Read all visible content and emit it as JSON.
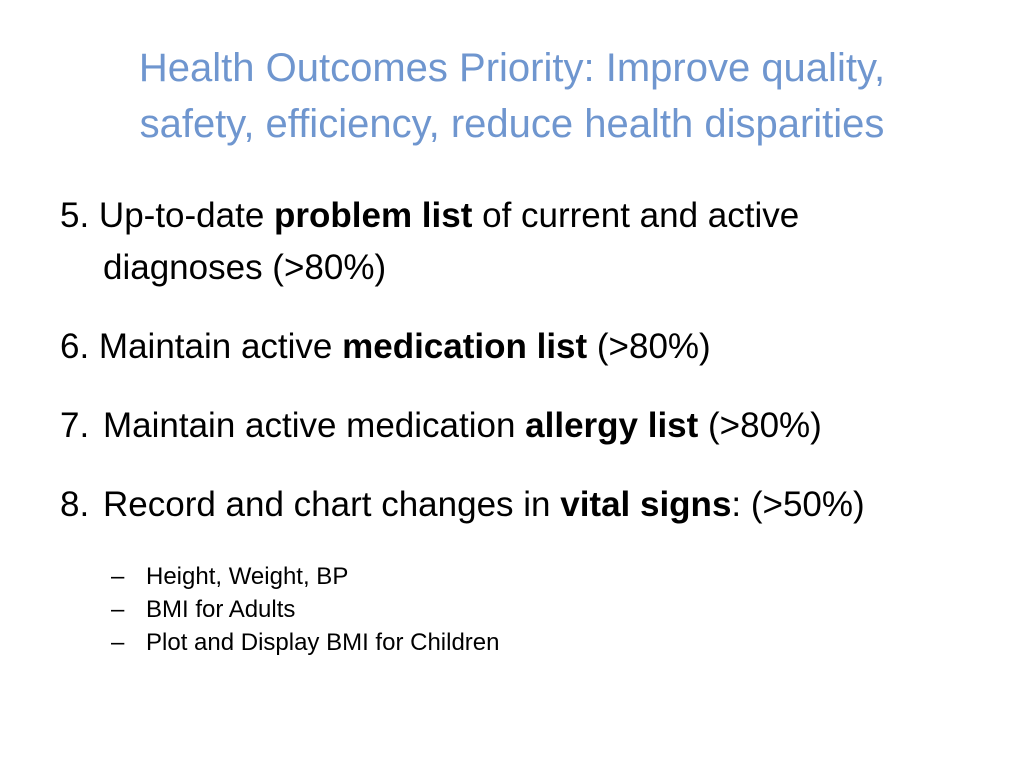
{
  "title": {
    "line1": "Health Outcomes Priority: Improve quality,",
    "line2": "safety, efficiency, reduce health disparities"
  },
  "items": [
    {
      "num": "5.",
      "pre": " Up-to-date ",
      "bold": "problem list",
      "post": " of current and active",
      "cont": "diagnoses (>80%)"
    },
    {
      "num": "6.",
      "pre": " Maintain active ",
      "bold": "medication list",
      "post": " (>80%)"
    },
    {
      "num": "7.",
      "pre": "Maintain active medication ",
      "bold": "allergy list",
      "post": " (>80%)"
    },
    {
      "num": "8.",
      "pre": "Record and chart changes in ",
      "bold": "vital signs",
      "post": ": (>50%)"
    }
  ],
  "subitems": [
    {
      "dash": "–",
      "text": "Height, Weight, BP"
    },
    {
      "dash": "–",
      "text": "BMI for Adults"
    },
    {
      "dash": "–",
      "text": "Plot and Display BMI for Children"
    }
  ],
  "colors": {
    "title": "#6f96cf",
    "body": "#000000",
    "background": "#ffffff"
  }
}
